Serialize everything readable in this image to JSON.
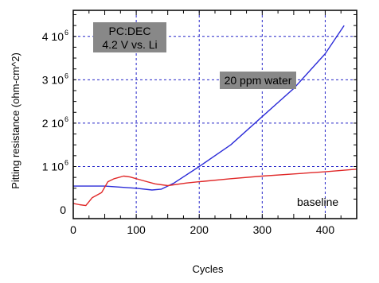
{
  "chart_data": {
    "type": "line",
    "title": "",
    "xlabel": "Cycles",
    "ylabel": "Pitting resistance (ohm-cm^2)",
    "xlim": [
      0,
      450
    ],
    "ylim": [
      -200000,
      4600000
    ],
    "grid": true,
    "x_ticks": [
      {
        "value": 0,
        "label": "0"
      },
      {
        "value": 100,
        "label": "100"
      },
      {
        "value": 200,
        "label": "200"
      },
      {
        "value": 300,
        "label": "300"
      },
      {
        "value": 400,
        "label": "400"
      }
    ],
    "y_ticks": [
      {
        "value": 0,
        "label": "0"
      },
      {
        "value": 1000000,
        "label": "1 10",
        "exp": "6"
      },
      {
        "value": 2000000,
        "label": "2 10",
        "exp": "6"
      },
      {
        "value": 3000000,
        "label": "3 10",
        "exp": "6"
      },
      {
        "value": 4000000,
        "label": "4 10",
        "exp": "6"
      }
    ],
    "annotations": [
      {
        "id": "condition",
        "lines": [
          "PC:DEC",
          "4.2 V vs. Li"
        ]
      },
      {
        "id": "water",
        "lines": [
          "20 ppm water"
        ]
      },
      {
        "id": "baseline",
        "lines": [
          "baseline"
        ]
      }
    ],
    "series": [
      {
        "name": "20 ppm water",
        "color": "#2c2cd8",
        "x": [
          0,
          50,
          100,
          125,
          140,
          160,
          200,
          250,
          300,
          350,
          400,
          430
        ],
        "y": [
          550000,
          550000,
          500000,
          460000,
          480000,
          620000,
          1000000,
          1500000,
          2150000,
          2800000,
          3600000,
          4250000
        ]
      },
      {
        "name": "baseline",
        "color": "#e02828",
        "x": [
          0,
          10,
          20,
          30,
          45,
          55,
          65,
          80,
          90,
          110,
          130,
          150,
          180,
          200,
          250,
          300,
          350,
          400,
          450
        ],
        "y": [
          150000,
          120000,
          100000,
          280000,
          400000,
          650000,
          720000,
          780000,
          760000,
          680000,
          600000,
          560000,
          620000,
          650000,
          720000,
          780000,
          830000,
          880000,
          940000
        ]
      }
    ]
  }
}
